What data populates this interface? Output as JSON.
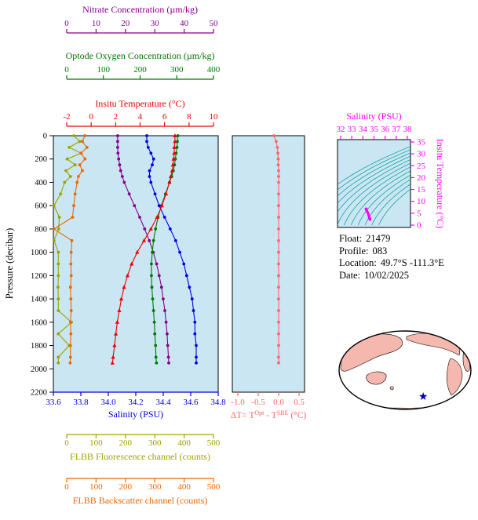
{
  "figure": {
    "bg": "#ffffff",
    "plot_bg": "#c9e6f2"
  },
  "info_panel": {
    "lines": [
      {
        "label": "Float:",
        "value": "21479"
      },
      {
        "label": "Profile:",
        "value": "083"
      },
      {
        "label": "Location:",
        "value": "49.7°S -111.3°E"
      },
      {
        "label": "Date:",
        "value": "10/02/2025"
      }
    ]
  },
  "chart_data": [
    {
      "id": "profile",
      "type": "line",
      "ylabel": "Pressure (decibar)",
      "ylim": [
        0,
        2200
      ],
      "yticks": [
        {
          "v": 0,
          "l": "0"
        },
        {
          "v": 200,
          "l": "200"
        },
        {
          "v": 400,
          "l": "400"
        },
        {
          "v": 600,
          "l": "600"
        },
        {
          "v": 800,
          "l": "800"
        },
        {
          "v": 1000,
          "l": "1000"
        },
        {
          "v": 1200,
          "l": "1200"
        },
        {
          "v": 1400,
          "l": "1400"
        },
        {
          "v": 1600,
          "l": "1600"
        },
        {
          "v": 1800,
          "l": "1800"
        },
        {
          "v": 2000,
          "l": "2000"
        },
        {
          "v": 2200,
          "l": "2200"
        }
      ],
      "axes": [
        {
          "id": "nitrate",
          "position": "top-1",
          "label": "Nitrate Concentration (µm/kg)",
          "color": "#880088",
          "range": [
            0,
            50
          ],
          "ticks": [
            {
              "v": 0,
              "l": "0"
            },
            {
              "v": 10,
              "l": "10"
            },
            {
              "v": 20,
              "l": "20"
            },
            {
              "v": 30,
              "l": "30"
            },
            {
              "v": 40,
              "l": "40"
            },
            {
              "v": 50,
              "l": "50"
            }
          ]
        },
        {
          "id": "oxygen",
          "position": "top-2",
          "label": "Optode Oxygen Concentration (µm/kg)",
          "color": "#007700",
          "range": [
            0,
            400
          ],
          "ticks": [
            {
              "v": 0,
              "l": "0"
            },
            {
              "v": 100,
              "l": "100"
            },
            {
              "v": 200,
              "l": "200"
            },
            {
              "v": 300,
              "l": "300"
            },
            {
              "v": 400,
              "l": "400"
            }
          ]
        },
        {
          "id": "temperature",
          "position": "top-3",
          "label": "Insitu Temperature (°C)",
          "color": "#ee0000",
          "range": [
            -2,
            10
          ],
          "ticks": [
            {
              "v": -2,
              "l": "-2"
            },
            {
              "v": 0,
              "l": "0"
            },
            {
              "v": 2,
              "l": "2"
            },
            {
              "v": 4,
              "l": "4"
            },
            {
              "v": 6,
              "l": "6"
            },
            {
              "v": 8,
              "l": "8"
            },
            {
              "v": 10,
              "l": "10"
            }
          ]
        },
        {
          "id": "salinity",
          "position": "bottom-1",
          "label": "Salinity (PSU)",
          "color": "#0000dd",
          "range": [
            33.6,
            34.8
          ],
          "ticks": [
            {
              "v": 33.6,
              "l": "33.6"
            },
            {
              "v": 33.8,
              "l": "33.8"
            },
            {
              "v": 34.0,
              "l": "34.0"
            },
            {
              "v": 34.2,
              "l": "34.2"
            },
            {
              "v": 34.4,
              "l": "34.4"
            },
            {
              "v": 34.6,
              "l": "34.6"
            },
            {
              "v": 34.8,
              "l": "34.8"
            }
          ]
        },
        {
          "id": "fluorescence",
          "position": "bottom-2",
          "label": "FLBB Fluorescence channel (counts)",
          "color": "#a0a000",
          "range": [
            0,
            500
          ],
          "ticks": [
            {
              "v": 0,
              "l": "0"
            },
            {
              "v": 100,
              "l": "100"
            },
            {
              "v": 200,
              "l": "200"
            },
            {
              "v": 300,
              "l": "300"
            },
            {
              "v": 400,
              "l": "400"
            },
            {
              "v": 500,
              "l": "500"
            }
          ]
        },
        {
          "id": "backscatter",
          "position": "bottom-3",
          "label": "FLBB Backscatter channel (counts)",
          "color": "#ee6600",
          "range": [
            0,
            500
          ],
          "ticks": [
            {
              "v": 0,
              "l": "0"
            },
            {
              "v": 100,
              "l": "100"
            },
            {
              "v": 200,
              "l": "200"
            },
            {
              "v": 300,
              "l": "300"
            },
            {
              "v": 400,
              "l": "400"
            },
            {
              "v": 500,
              "l": "500"
            }
          ]
        }
      ],
      "pressure": [
        0,
        50,
        100,
        150,
        200,
        250,
        300,
        350,
        400,
        500,
        600,
        700,
        800,
        900,
        1000,
        1100,
        1200,
        1300,
        1400,
        1500,
        1600,
        1700,
        1800,
        1900,
        1950
      ],
      "series": [
        {
          "name": "fluorescence",
          "axis": "fluorescence",
          "color": "#a0a000",
          "marker": "circle",
          "values": [
            62,
            80,
            48,
            84,
            42,
            66,
            38,
            52,
            34,
            22,
            2,
            18,
            16,
            2,
            15,
            15,
            15,
            14,
            15,
            15,
            55,
            15,
            48,
            15,
            15
          ]
        },
        {
          "name": "backscatter",
          "axis": "backscatter",
          "color": "#ee6600",
          "marker": "circle",
          "values": [
            95,
            88,
            102,
            84,
            96,
            80,
            88,
            76,
            72,
            66,
            62,
            58,
            2,
            56,
            54,
            53,
            54,
            52,
            53,
            54,
            52,
            53,
            52,
            52,
            51
          ]
        },
        {
          "name": "nitrate",
          "axis": "nitrate",
          "color": "#880088",
          "marker": "circle",
          "values": [
            19.5,
            19.5,
            19.5,
            19.6,
            19.8,
            20.1,
            20.4,
            20.9,
            21.5,
            23.0,
            24.6,
            26.2,
            27.7,
            29.1,
            30.3,
            31.3,
            32.1,
            32.8,
            33.3,
            33.8,
            34.2,
            34.5,
            34.7,
            34.9,
            35.0
          ]
        },
        {
          "name": "oxygen",
          "axis": "oxygen",
          "color": "#007700",
          "marker": "circle",
          "values": [
            302,
            301,
            300,
            298,
            296,
            294,
            291,
            287,
            282,
            272,
            262,
            254,
            248,
            243,
            240,
            238,
            238,
            239,
            241,
            243,
            245,
            246,
            248,
            249,
            250
          ]
        },
        {
          "name": "salinity",
          "axis": "salinity",
          "color": "#0000dd",
          "marker": "circle",
          "values": [
            34.28,
            34.28,
            34.29,
            34.31,
            34.33,
            34.32,
            34.3,
            34.3,
            34.31,
            34.34,
            34.37,
            34.41,
            34.45,
            34.49,
            34.52,
            34.55,
            34.57,
            34.59,
            34.61,
            34.62,
            34.63,
            34.63,
            34.64,
            34.64,
            34.64
          ]
        },
        {
          "name": "temperature",
          "axis": "temperature",
          "color": "#ee0000",
          "marker": "triangle",
          "values": [
            6.85,
            6.85,
            6.8,
            6.8,
            6.75,
            6.7,
            6.65,
            6.55,
            6.45,
            6.2,
            5.9,
            5.55,
            5.1,
            4.6,
            4.1,
            3.7,
            3.4,
            3.15,
            2.95,
            2.8,
            2.65,
            2.55,
            2.45,
            2.35,
            2.3
          ]
        }
      ]
    },
    {
      "id": "delta_t",
      "type": "line",
      "xlabel_parts": [
        {
          "t": "ΔT= T"
        },
        {
          "t": "Opt",
          "sup": true
        },
        {
          "t": " - T"
        },
        {
          "t": "SBE",
          "sup": true
        },
        {
          "t": " (°C)"
        }
      ],
      "xlim": [
        -1.0,
        0.5
      ],
      "xticks": [
        {
          "v": -1.0,
          "l": "-1.0"
        },
        {
          "v": -0.5,
          "l": "-0.5"
        },
        {
          "v": 0.0,
          "l": "0.0"
        },
        {
          "v": 0.5,
          "l": "0.5"
        }
      ],
      "color": "#ff6666",
      "pressure": [
        0,
        50,
        100,
        150,
        200,
        250,
        300,
        350,
        400,
        500,
        600,
        700,
        800,
        900,
        1000,
        1100,
        1200,
        1300,
        1400,
        1500,
        1600,
        1700,
        1800,
        1900,
        1950
      ],
      "values": [
        -0.12,
        -0.06,
        -0.03,
        -0.02,
        -0.01,
        -0.01,
        0,
        0,
        0,
        0,
        0,
        0,
        0,
        0,
        0,
        0,
        0,
        0,
        0,
        0,
        0,
        0,
        0,
        0,
        0
      ]
    },
    {
      "id": "ts",
      "type": "line",
      "xlabel": "Salinity (PSU)",
      "xlim": [
        32,
        38
      ],
      "xticks": [
        {
          "v": 32,
          "l": "32"
        },
        {
          "v": 33,
          "l": "33"
        },
        {
          "v": 34,
          "l": "34"
        },
        {
          "v": 35,
          "l": "35"
        },
        {
          "v": 36,
          "l": "36"
        },
        {
          "v": 37,
          "l": "37"
        },
        {
          "v": 38,
          "l": "38"
        }
      ],
      "ylabel": "Insitu Temperature (°C)",
      "ylim": [
        0,
        35
      ],
      "yticks": [
        {
          "v": 0,
          "l": "0"
        },
        {
          "v": 5,
          "l": "5"
        },
        {
          "v": 10,
          "l": "10"
        },
        {
          "v": 15,
          "l": "15"
        },
        {
          "v": 20,
          "l": "20"
        },
        {
          "v": 25,
          "l": "25"
        },
        {
          "v": 30,
          "l": "30"
        },
        {
          "v": 35,
          "l": "35"
        }
      ],
      "axis_color": "#ff00ff",
      "curve_color": "#ff00ff",
      "contour_color": "#009999",
      "salinity": [
        34.28,
        34.28,
        34.29,
        34.31,
        34.33,
        34.32,
        34.3,
        34.3,
        34.31,
        34.34,
        34.37,
        34.41,
        34.45,
        34.49,
        34.52,
        34.55,
        34.57,
        34.59,
        34.61,
        34.62,
        34.63,
        34.63,
        34.64,
        34.64,
        34.64
      ],
      "temperature": [
        6.85,
        6.85,
        6.8,
        6.8,
        6.75,
        6.7,
        6.65,
        6.55,
        6.45,
        6.2,
        5.9,
        5.55,
        5.1,
        4.6,
        4.1,
        3.7,
        3.4,
        3.15,
        2.95,
        2.8,
        2.65,
        2.55,
        2.45,
        2.35,
        2.3
      ]
    },
    {
      "id": "map",
      "type": "map",
      "land_color": "#f5b8ae",
      "ocean_color": "#ffffff",
      "outline_color": "#000000",
      "star_color": "#0000bb",
      "star_lat": -49.7,
      "star_lon": -111.3,
      "center_lon": 180
    }
  ]
}
